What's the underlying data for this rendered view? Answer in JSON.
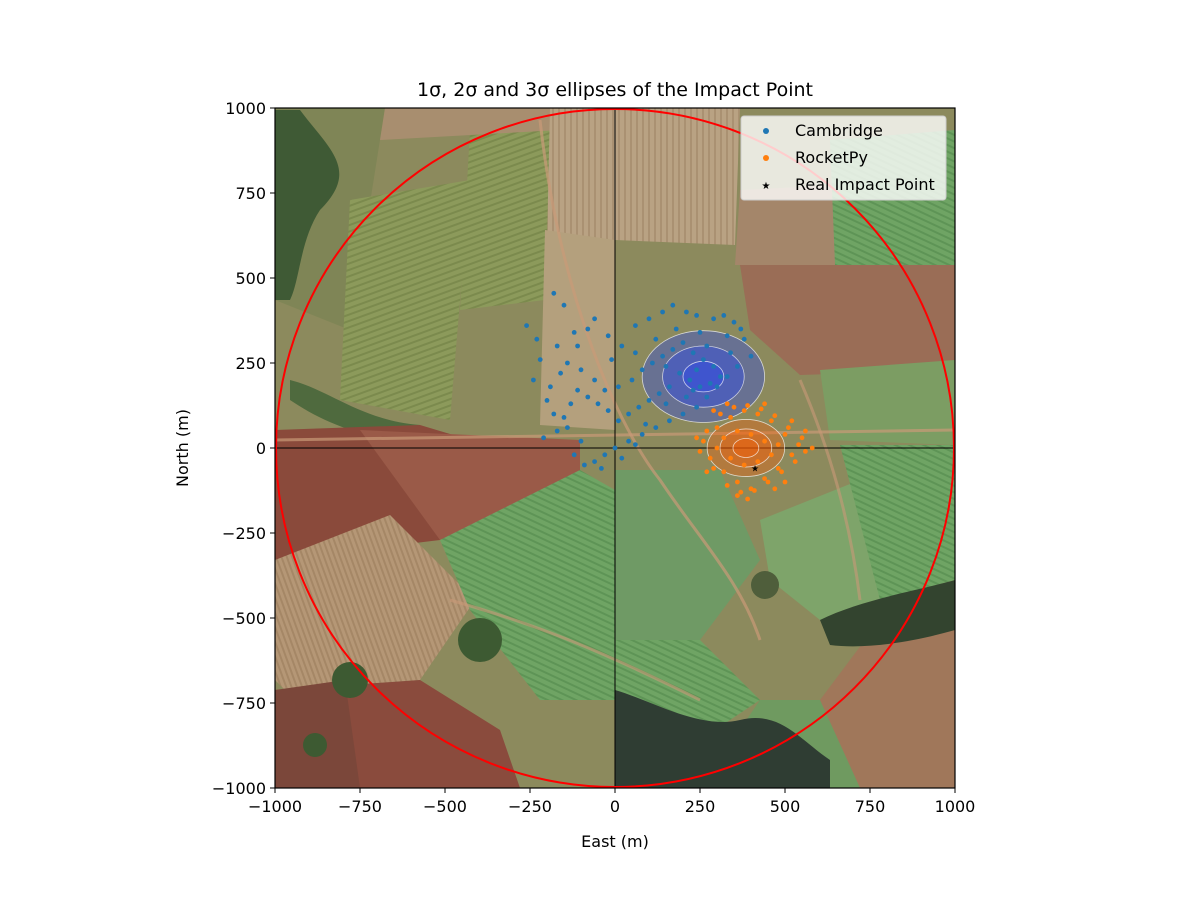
{
  "chart_data": {
    "type": "scatter",
    "title": "1σ, 2σ and 3σ ellipses of the Impact Point",
    "xlabel": "East (m)",
    "ylabel": "North (m)",
    "xlim": [
      -1000,
      1000
    ],
    "ylim": [
      -1000,
      1000
    ],
    "x_ticks": [
      -1000,
      -750,
      -500,
      -250,
      0,
      250,
      500,
      750,
      1000
    ],
    "y_ticks": [
      -1000,
      -750,
      -500,
      -250,
      0,
      250,
      500,
      750,
      1000
    ],
    "x_tick_labels": [
      "−1000",
      "−750",
      "−500",
      "−250",
      "0",
      "250",
      "500",
      "750",
      "1000"
    ],
    "y_tick_labels": [
      "−1000",
      "−750",
      "−500",
      "−250",
      "0",
      "250",
      "500",
      "750",
      "1000"
    ],
    "grid": false,
    "legend_position": "top-right",
    "background": "satellite-image",
    "series": [
      {
        "name": "Cambridge",
        "color": "#1f77b4",
        "marker": "circle",
        "center": [
          260,
          210
        ],
        "ellipse_1sigma_semi_axes": [
          60,
          45
        ],
        "ellipse_color": "#1f3fff",
        "points": [
          [
            -180,
            455
          ],
          [
            -150,
            420
          ],
          [
            -260,
            360
          ],
          [
            -230,
            320
          ],
          [
            -170,
            300
          ],
          [
            -120,
            340
          ],
          [
            -80,
            350
          ],
          [
            -60,
            380
          ],
          [
            -20,
            330
          ],
          [
            20,
            300
          ],
          [
            60,
            360
          ],
          [
            100,
            380
          ],
          [
            140,
            400
          ],
          [
            170,
            420
          ],
          [
            210,
            400
          ],
          [
            240,
            390
          ],
          [
            290,
            380
          ],
          [
            320,
            390
          ],
          [
            350,
            370
          ],
          [
            380,
            320
          ],
          [
            400,
            270
          ],
          [
            360,
            240
          ],
          [
            330,
            210
          ],
          [
            300,
            180
          ],
          [
            270,
            150
          ],
          [
            240,
            120
          ],
          [
            200,
            100
          ],
          [
            160,
            80
          ],
          [
            120,
            60
          ],
          [
            80,
            40
          ],
          [
            40,
            20
          ],
          [
            0,
            0
          ],
          [
            -30,
            -20
          ],
          [
            -60,
            -40
          ],
          [
            -100,
            20
          ],
          [
            -140,
            60
          ],
          [
            -180,
            100
          ],
          [
            -200,
            140
          ],
          [
            -190,
            180
          ],
          [
            -160,
            220
          ],
          [
            -140,
            250
          ],
          [
            -100,
            230
          ],
          [
            -60,
            200
          ],
          [
            -30,
            170
          ],
          [
            10,
            180
          ],
          [
            50,
            200
          ],
          [
            80,
            230
          ],
          [
            110,
            250
          ],
          [
            140,
            270
          ],
          [
            170,
            290
          ],
          [
            200,
            310
          ],
          [
            230,
            280
          ],
          [
            260,
            260
          ],
          [
            290,
            240
          ],
          [
            310,
            210
          ],
          [
            280,
            190
          ],
          [
            250,
            180
          ],
          [
            220,
            200
          ],
          [
            190,
            220
          ],
          [
            160,
            180
          ],
          [
            130,
            160
          ],
          [
            100,
            140
          ],
          [
            70,
            120
          ],
          [
            40,
            100
          ],
          [
            10,
            80
          ],
          [
            -20,
            110
          ],
          [
            -50,
            130
          ],
          [
            -80,
            150
          ],
          [
            -110,
            170
          ],
          [
            -130,
            130
          ],
          [
            -150,
            90
          ],
          [
            -170,
            50
          ],
          [
            -120,
            -20
          ],
          [
            -90,
            -50
          ],
          [
            -40,
            -60
          ],
          [
            20,
            -30
          ],
          [
            60,
            10
          ],
          [
            90,
            70
          ],
          [
            150,
            130
          ],
          [
            210,
            150
          ],
          [
            240,
            230
          ],
          [
            270,
            300
          ],
          [
            330,
            330
          ],
          [
            370,
            350
          ],
          [
            250,
            340
          ],
          [
            180,
            350
          ],
          [
            120,
            320
          ],
          [
            60,
            280
          ],
          [
            -10,
            260
          ],
          [
            -220,
            260
          ],
          [
            -240,
            200
          ],
          [
            -210,
            30
          ],
          [
            -110,
            300
          ],
          [
            150,
            240
          ],
          [
            230,
            170
          ],
          [
            340,
            280
          ]
        ]
      },
      {
        "name": "RocketPy",
        "color": "#ff7f0e",
        "marker": "circle",
        "center": [
          385,
          0
        ],
        "ellipse_1sigma_semi_axes": [
          38,
          28
        ],
        "ellipse_color": "#ff5a00",
        "points": [
          [
            260,
            20
          ],
          [
            280,
            -30
          ],
          [
            300,
            60
          ],
          [
            320,
            -70
          ],
          [
            340,
            90
          ],
          [
            360,
            -100
          ],
          [
            380,
            110
          ],
          [
            400,
            -120
          ],
          [
            420,
            100
          ],
          [
            440,
            -90
          ],
          [
            460,
            80
          ],
          [
            480,
            -60
          ],
          [
            500,
            40
          ],
          [
            520,
            -20
          ],
          [
            540,
            10
          ],
          [
            560,
            -10
          ],
          [
            580,
            0
          ],
          [
            250,
            -10
          ],
          [
            270,
            50
          ],
          [
            290,
            -60
          ],
          [
            310,
            100
          ],
          [
            330,
            -110
          ],
          [
            350,
            120
          ],
          [
            370,
            -130
          ],
          [
            390,
            125
          ],
          [
            410,
            -125
          ],
          [
            430,
            115
          ],
          [
            450,
            -100
          ],
          [
            470,
            95
          ],
          [
            490,
            -70
          ],
          [
            510,
            60
          ],
          [
            530,
            -40
          ],
          [
            550,
            30
          ],
          [
            300,
            0
          ],
          [
            320,
            30
          ],
          [
            340,
            -30
          ],
          [
            360,
            50
          ],
          [
            380,
            -50
          ],
          [
            400,
            40
          ],
          [
            420,
            -40
          ],
          [
            440,
            20
          ],
          [
            460,
            -20
          ],
          [
            480,
            10
          ],
          [
            360,
            -140
          ],
          [
            390,
            -150
          ],
          [
            330,
            130
          ],
          [
            440,
            130
          ],
          [
            520,
            80
          ],
          [
            270,
            -70
          ],
          [
            240,
            30
          ],
          [
            290,
            110
          ],
          [
            470,
            -120
          ],
          [
            560,
            50
          ],
          [
            500,
            -100
          ]
        ]
      },
      {
        "name": "Real Impact Point",
        "color": "#000000",
        "marker": "star",
        "points": [
          [
            412,
            -60
          ]
        ]
      }
    ],
    "annotations": [
      {
        "type": "circle",
        "color": "#ff0000",
        "center": [
          0,
          0
        ],
        "radius": 1000
      }
    ]
  }
}
